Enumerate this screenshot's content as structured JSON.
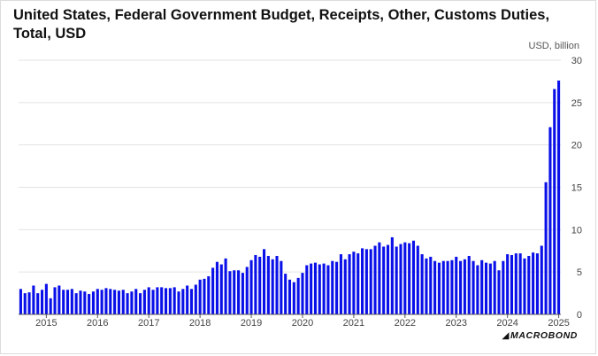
{
  "header": {
    "title": "United States, Federal Government Budget, Receipts, Other, Customs Duties, Total, USD",
    "unit": "USD, billion"
  },
  "brand": {
    "logo_text": "MACROBOND"
  },
  "colors": {
    "bar": "#0a10e8",
    "grid": "#e3e3e3",
    "axis": "#555555"
  },
  "chart_data": {
    "type": "bar",
    "title": "United States, Federal Government Budget, Receipts, Other, Customs Duties, Total, USD",
    "ylabel": "USD, billion",
    "ylim": [
      0,
      30
    ],
    "yticks": [
      0,
      5,
      10,
      15,
      20,
      25,
      30
    ],
    "y_axis_position": "right",
    "grid": true,
    "legend": "none",
    "x_start": "2014-07",
    "frequency": "monthly",
    "x_tick_labels": [
      "2015",
      "2016",
      "2017",
      "2018",
      "2019",
      "2020",
      "2021",
      "2022",
      "2023",
      "2024",
      "2025"
    ],
    "x_tick_months": [
      "2015-01",
      "2016-01",
      "2017-01",
      "2018-01",
      "2019-01",
      "2020-01",
      "2021-01",
      "2022-01",
      "2023-01",
      "2024-01",
      "2025-01"
    ],
    "values": [
      3.0,
      2.5,
      2.6,
      3.4,
      2.5,
      2.9,
      3.6,
      1.9,
      3.2,
      3.4,
      2.9,
      2.9,
      3.0,
      2.5,
      2.8,
      2.7,
      2.4,
      2.7,
      3.0,
      2.9,
      3.1,
      3.0,
      2.9,
      2.8,
      2.9,
      2.5,
      2.7,
      3.0,
      2.5,
      2.9,
      3.2,
      2.9,
      3.2,
      3.2,
      3.1,
      3.1,
      3.2,
      2.7,
      3.0,
      3.4,
      3.0,
      3.5,
      4.1,
      4.2,
      4.5,
      5.5,
      6.2,
      5.9,
      6.6,
      5.1,
      5.2,
      5.2,
      4.9,
      5.6,
      6.4,
      7.0,
      6.8,
      7.7,
      6.9,
      6.5,
      6.9,
      6.3,
      4.8,
      4.1,
      3.8,
      4.3,
      4.9,
      5.8,
      6.0,
      6.1,
      5.9,
      6.0,
      5.8,
      6.3,
      6.2,
      7.1,
      6.5,
      7.1,
      7.4,
      7.2,
      7.8,
      7.7,
      7.7,
      8.1,
      8.5,
      8.0,
      8.2,
      9.1,
      8.0,
      8.3,
      8.5,
      8.4,
      8.7,
      8.1,
      7.1,
      6.6,
      6.8,
      6.3,
      6.1,
      6.3,
      6.3,
      6.4,
      6.8,
      6.3,
      6.5,
      6.9,
      6.3,
      5.8,
      6.4,
      6.1,
      6.0,
      6.3,
      5.2,
      6.3,
      7.1,
      7.0,
      7.2,
      7.2,
      6.6,
      6.9,
      7.3,
      7.2,
      8.1,
      15.6,
      22.1,
      26.6,
      27.6
    ]
  }
}
